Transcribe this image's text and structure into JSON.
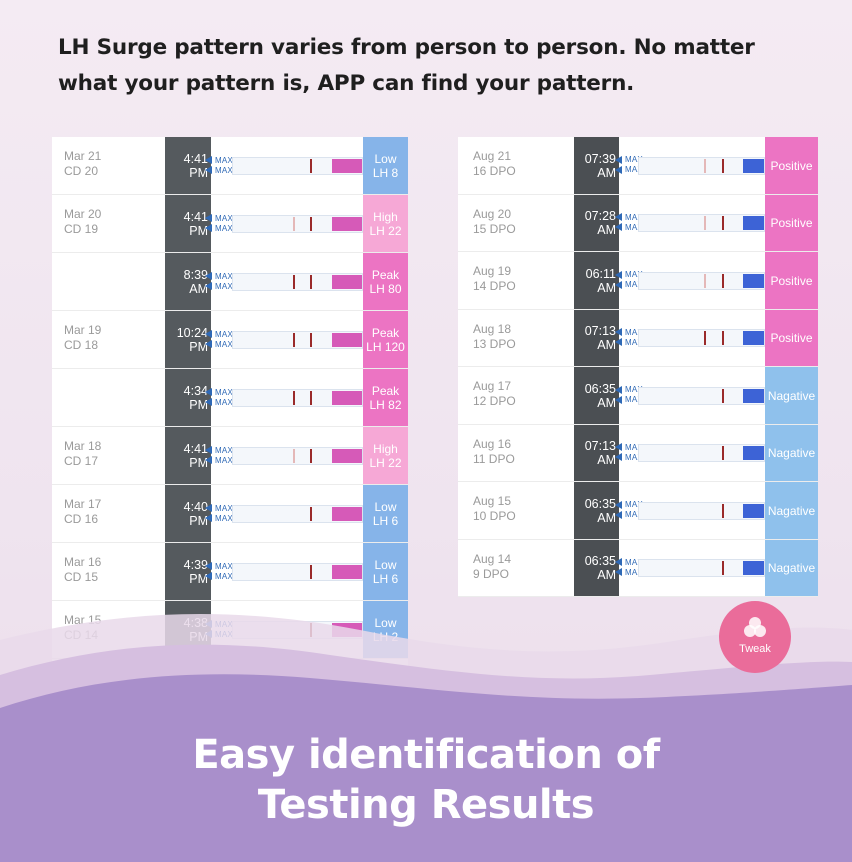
{
  "headline": {
    "line1": "LH Surge pattern varies from person to person. No matter",
    "line2": "what your pattern is, APP can find your pattern."
  },
  "arrow_label": "MAX",
  "left_panel": {
    "rows": [
      {
        "date": "Mar 21",
        "day": "CD 20",
        "time1": "4:41",
        "time2": "PM",
        "level": "Low",
        "value": "LH 8",
        "result_type": "low",
        "lines": "strong",
        "pad_color": "#d65ab8",
        "result_color": "#86b4e9"
      },
      {
        "date": "Mar 20",
        "day": "CD 19",
        "time1": "4:41",
        "time2": "PM",
        "level": "High",
        "value": "LH 22",
        "result_type": "high",
        "lines": "two",
        "pad_color": "#d65ab8",
        "result_color": "#f6a8d6"
      },
      {
        "date": "",
        "day": "",
        "time1": "8:39",
        "time2": "AM",
        "level": "Peak",
        "value": "LH 80",
        "result_type": "peak",
        "lines": "two-strong",
        "pad_color": "#d65ab8",
        "result_color": "#ec74c3"
      },
      {
        "date": "Mar 19",
        "day": "CD 18",
        "time1": "10:24",
        "time2": "PM",
        "level": "Peak",
        "value": "LH 120",
        "result_type": "peak",
        "lines": "two-strong",
        "pad_color": "#d65ab8",
        "result_color": "#ec74c3"
      },
      {
        "date": "",
        "day": "",
        "time1": "4:34",
        "time2": "PM",
        "level": "Peak",
        "value": "LH 82",
        "result_type": "peak",
        "lines": "two-strong",
        "pad_color": "#d65ab8",
        "result_color": "#ec74c3"
      },
      {
        "date": "Mar 18",
        "day": "CD 17",
        "time1": "4:41",
        "time2": "PM",
        "level": "High",
        "value": "LH 22",
        "result_type": "high",
        "lines": "two",
        "pad_color": "#d65ab8",
        "result_color": "#f6a8d6"
      },
      {
        "date": "Mar 17",
        "day": "CD 16",
        "time1": "4:40",
        "time2": "PM",
        "level": "Low",
        "value": "LH 6",
        "result_type": "low",
        "lines": "strong",
        "pad_color": "#d65ab8",
        "result_color": "#86b4e9"
      },
      {
        "date": "Mar 16",
        "day": "CD 15",
        "time1": "4:39",
        "time2": "PM",
        "level": "Low",
        "value": "LH 6",
        "result_type": "low",
        "lines": "strong",
        "pad_color": "#d65ab8",
        "result_color": "#86b4e9"
      },
      {
        "date": "Mar 15",
        "day": "CD 14",
        "time1": "4:38",
        "time2": "PM",
        "level": "Low",
        "value": "LH 2",
        "result_type": "low",
        "lines": "strong",
        "pad_color": "#d65ab8",
        "result_color": "#86b4e9"
      }
    ]
  },
  "right_panel": {
    "rows": [
      {
        "date": "Aug 21",
        "day": "16 DPO",
        "time1": "07:39",
        "time2": "AM",
        "result": "Positive",
        "lines": "two",
        "pad_color": "#3d63d6",
        "result_color": "#ec74c3"
      },
      {
        "date": "Aug 20",
        "day": "15 DPO",
        "time1": "07:28",
        "time2": "AM",
        "result": "Positive",
        "lines": "two",
        "pad_color": "#3d63d6",
        "result_color": "#ec74c3"
      },
      {
        "date": "Aug 19",
        "day": "14 DPO",
        "time1": "06:11",
        "time2": "AM",
        "result": "Positive",
        "lines": "two",
        "pad_color": "#3d63d6",
        "result_color": "#ec74c3"
      },
      {
        "date": "Aug 18",
        "day": "13 DPO",
        "time1": "07:13",
        "time2": "AM",
        "result": "Positive",
        "lines": "two-strong",
        "pad_color": "#3d63d6",
        "result_color": "#ec74c3"
      },
      {
        "date": "Aug 17",
        "day": "12 DPO",
        "time1": "06:35",
        "time2": "AM",
        "result": "Nagative",
        "lines": "one",
        "pad_color": "#3d63d6",
        "result_color": "#8fc1ec"
      },
      {
        "date": "Aug 16",
        "day": "11 DPO",
        "time1": "07:13",
        "time2": "AM",
        "result": "Nagative",
        "lines": "one",
        "pad_color": "#3d63d6",
        "result_color": "#8fc1ec"
      },
      {
        "date": "Aug 15",
        "day": "10 DPO",
        "time1": "06:35",
        "time2": "AM",
        "result": "Nagative",
        "lines": "one",
        "pad_color": "#3d63d6",
        "result_color": "#8fc1ec"
      },
      {
        "date": "Aug 14",
        "day": "9 DPO",
        "time1": "06:35",
        "time2": "AM",
        "result": "Nagative",
        "lines": "one",
        "pad_color": "#3d63d6",
        "result_color": "#8fc1ec"
      }
    ]
  },
  "tweak_button": {
    "label": "Tweak",
    "icon": "three-circles-icon",
    "color": "#ea6c9a"
  },
  "footer": {
    "line1": "Easy identification of",
    "line2": "Testing Results"
  }
}
